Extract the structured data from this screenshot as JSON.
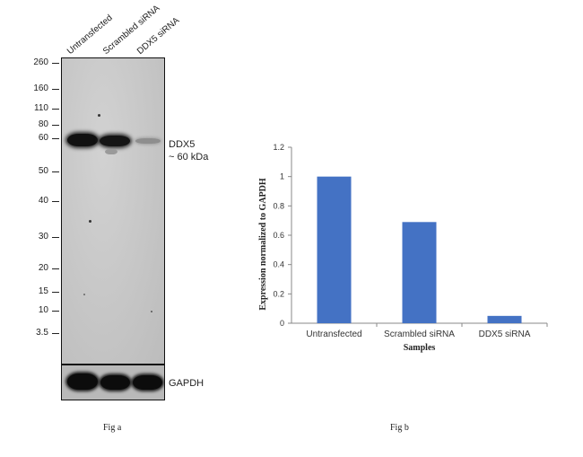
{
  "figure_a": {
    "lane_labels": [
      "Untransfected",
      "Scrambled siRNA",
      "DDX5 siRNA"
    ],
    "mw_markers": [
      "260",
      "160",
      "110",
      "80",
      "60",
      "50",
      "40",
      "30",
      "20",
      "15",
      "10",
      "3.5"
    ],
    "target_label_line1": "DDX5",
    "target_label_line2": "~ 60 kDa",
    "loading_control_label": "GAPDH",
    "caption": "Fig a"
  },
  "figure_b": {
    "caption": "Fig b"
  },
  "chart_data": {
    "type": "bar",
    "categories": [
      "Untransfected",
      "Scrambled siRNA",
      "DDX5 siRNA"
    ],
    "values": [
      1.0,
      0.69,
      0.05
    ],
    "title": "",
    "xlabel": "Samples",
    "ylabel": "Expression normalized to GAPDH",
    "ylim": [
      0,
      1.2
    ],
    "yticks": [
      "0",
      "0.2",
      "0.4",
      "0.6",
      "0.8",
      "1",
      "1.2"
    ],
    "bar_color": "#4472c4",
    "grid": false,
    "legend": "none"
  }
}
